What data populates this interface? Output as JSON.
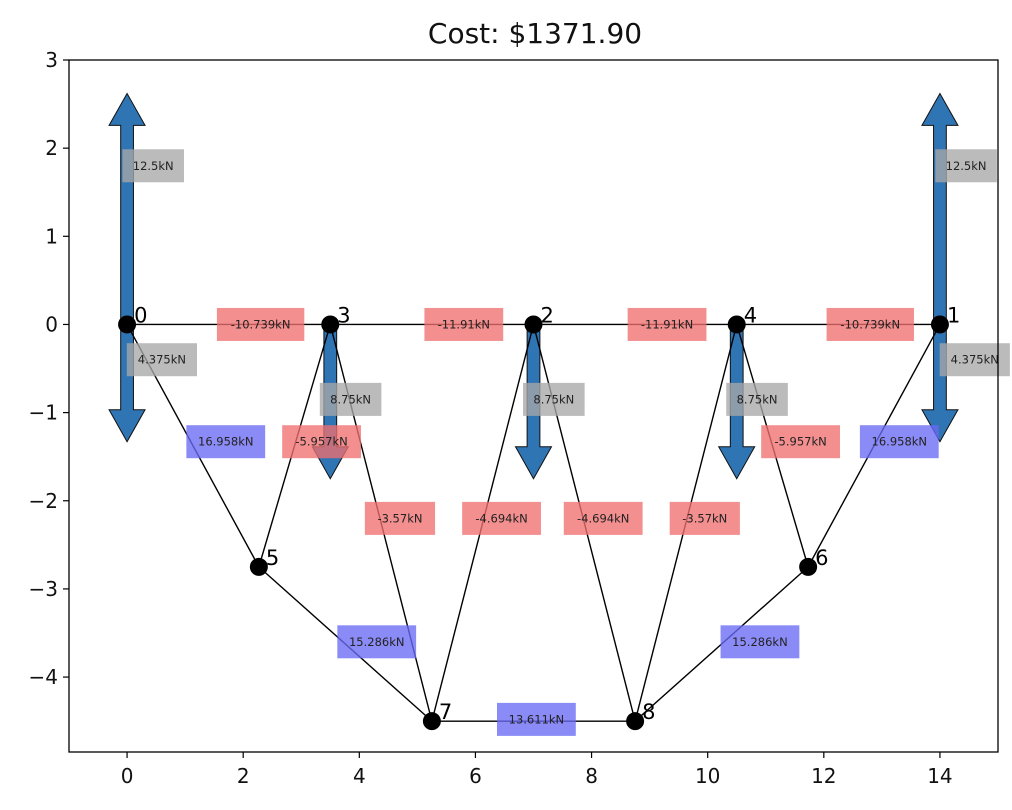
{
  "title": "Cost: $1371.90",
  "chart_data": {
    "type": "truss-diagram",
    "xlim": [
      -1.0,
      15.0
    ],
    "ylim": [
      -4.85,
      3.0
    ],
    "x_ticks": [
      0,
      2,
      4,
      6,
      8,
      10,
      12,
      14
    ],
    "y_ticks": [
      3,
      2,
      1,
      0,
      -1,
      -2,
      -3,
      -4
    ],
    "x_tick_labels": [
      "0",
      "2",
      "4",
      "6",
      "8",
      "10",
      "12",
      "14"
    ],
    "y_tick_labels": [
      "3",
      "2",
      "1",
      "0",
      "−1",
      "−2",
      "−3",
      "−4"
    ],
    "nodes": [
      {
        "id": "0",
        "x": 0.0,
        "y": 0.0
      },
      {
        "id": "1",
        "x": 14.0,
        "y": 0.0
      },
      {
        "id": "2",
        "x": 7.0,
        "y": 0.0
      },
      {
        "id": "3",
        "x": 3.5,
        "y": 0.0
      },
      {
        "id": "4",
        "x": 10.5,
        "y": 0.0
      },
      {
        "id": "5",
        "x": 2.27,
        "y": -2.75
      },
      {
        "id": "6",
        "x": 11.73,
        "y": -2.75
      },
      {
        "id": "7",
        "x": 5.25,
        "y": -4.5
      },
      {
        "id": "8",
        "x": 8.75,
        "y": -4.5
      }
    ],
    "members": [
      {
        "from": "0",
        "to": "3",
        "force": -10.739,
        "label": "-10.739kN",
        "lx": 2.3,
        "ly": 0.0
      },
      {
        "from": "3",
        "to": "2",
        "force": -11.91,
        "label": "-11.91kN",
        "lx": 5.8,
        "ly": 0.0
      },
      {
        "from": "2",
        "to": "4",
        "force": -11.91,
        "label": "-11.91kN",
        "lx": 9.3,
        "ly": 0.0
      },
      {
        "from": "4",
        "to": "1",
        "force": -10.739,
        "label": "-10.739kN",
        "lx": 12.8,
        "ly": 0.0
      },
      {
        "from": "0",
        "to": "5",
        "force": 16.958,
        "label": "16.958kN",
        "lx": 1.7,
        "ly": -1.33
      },
      {
        "from": "5",
        "to": "3",
        "force": -5.957,
        "label": "-5.957kN",
        "lx": 3.35,
        "ly": -1.33
      },
      {
        "from": "3",
        "to": "7",
        "force": -3.57,
        "label": "-3.57kN",
        "lx": 4.7,
        "ly": -2.2
      },
      {
        "from": "7",
        "to": "2",
        "force": -4.694,
        "label": "-4.694kN",
        "lx": 6.45,
        "ly": -2.2
      },
      {
        "from": "2",
        "to": "8",
        "force": -4.694,
        "label": "-4.694kN",
        "lx": 8.2,
        "ly": -2.2
      },
      {
        "from": "8",
        "to": "4",
        "force": -3.57,
        "label": "-3.57kN",
        "lx": 9.95,
        "ly": -2.2
      },
      {
        "from": "4",
        "to": "6",
        "force": -5.957,
        "label": "-5.957kN",
        "lx": 11.6,
        "ly": -1.33
      },
      {
        "from": "6",
        "to": "1",
        "force": 16.958,
        "label": "16.958kN",
        "lx": 13.3,
        "ly": -1.33
      },
      {
        "from": "5",
        "to": "7",
        "force": 15.286,
        "label": "15.286kN",
        "lx": 4.3,
        "ly": -3.6
      },
      {
        "from": "7",
        "to": "8",
        "force": 13.611,
        "label": "13.611kN",
        "lx": 7.05,
        "ly": -4.48
      },
      {
        "from": "8",
        "to": "6",
        "force": 15.286,
        "label": "15.286kN",
        "lx": 10.9,
        "ly": -3.6
      }
    ],
    "arrows": [
      {
        "x": 0.0,
        "y0": 0.0,
        "y1": 2.62,
        "dir": "up",
        "label": "12.5kN",
        "lx": 0.45,
        "ly": 1.8
      },
      {
        "x": 14.0,
        "y0": 0.0,
        "y1": 2.62,
        "dir": "up",
        "label": "12.5kN",
        "lx": 14.45,
        "ly": 1.8
      },
      {
        "x": 0.0,
        "y0": 0.0,
        "y1": -1.33,
        "dir": "down",
        "label": "4.375kN",
        "lx": 0.6,
        "ly": -0.4
      },
      {
        "x": 14.0,
        "y0": 0.0,
        "y1": -1.33,
        "dir": "down",
        "label": "4.375kN",
        "lx": 14.6,
        "ly": -0.4
      },
      {
        "x": 3.5,
        "y0": 0.0,
        "y1": -1.75,
        "dir": "down",
        "label": "8.75kN",
        "lx": 3.85,
        "ly": -0.85
      },
      {
        "x": 7.0,
        "y0": 0.0,
        "y1": -1.75,
        "dir": "down",
        "label": "8.75kN",
        "lx": 7.35,
        "ly": -0.85
      },
      {
        "x": 10.5,
        "y0": 0.0,
        "y1": -1.75,
        "dir": "down",
        "label": "8.75kN",
        "lx": 10.85,
        "ly": -0.85
      }
    ],
    "colors": {
      "compression": "#ef6f6f",
      "tension": "#6a6af5",
      "load": "#a8a8a8",
      "arrow": "#2f74b3",
      "member": "#000000",
      "node": "#000000"
    }
  }
}
